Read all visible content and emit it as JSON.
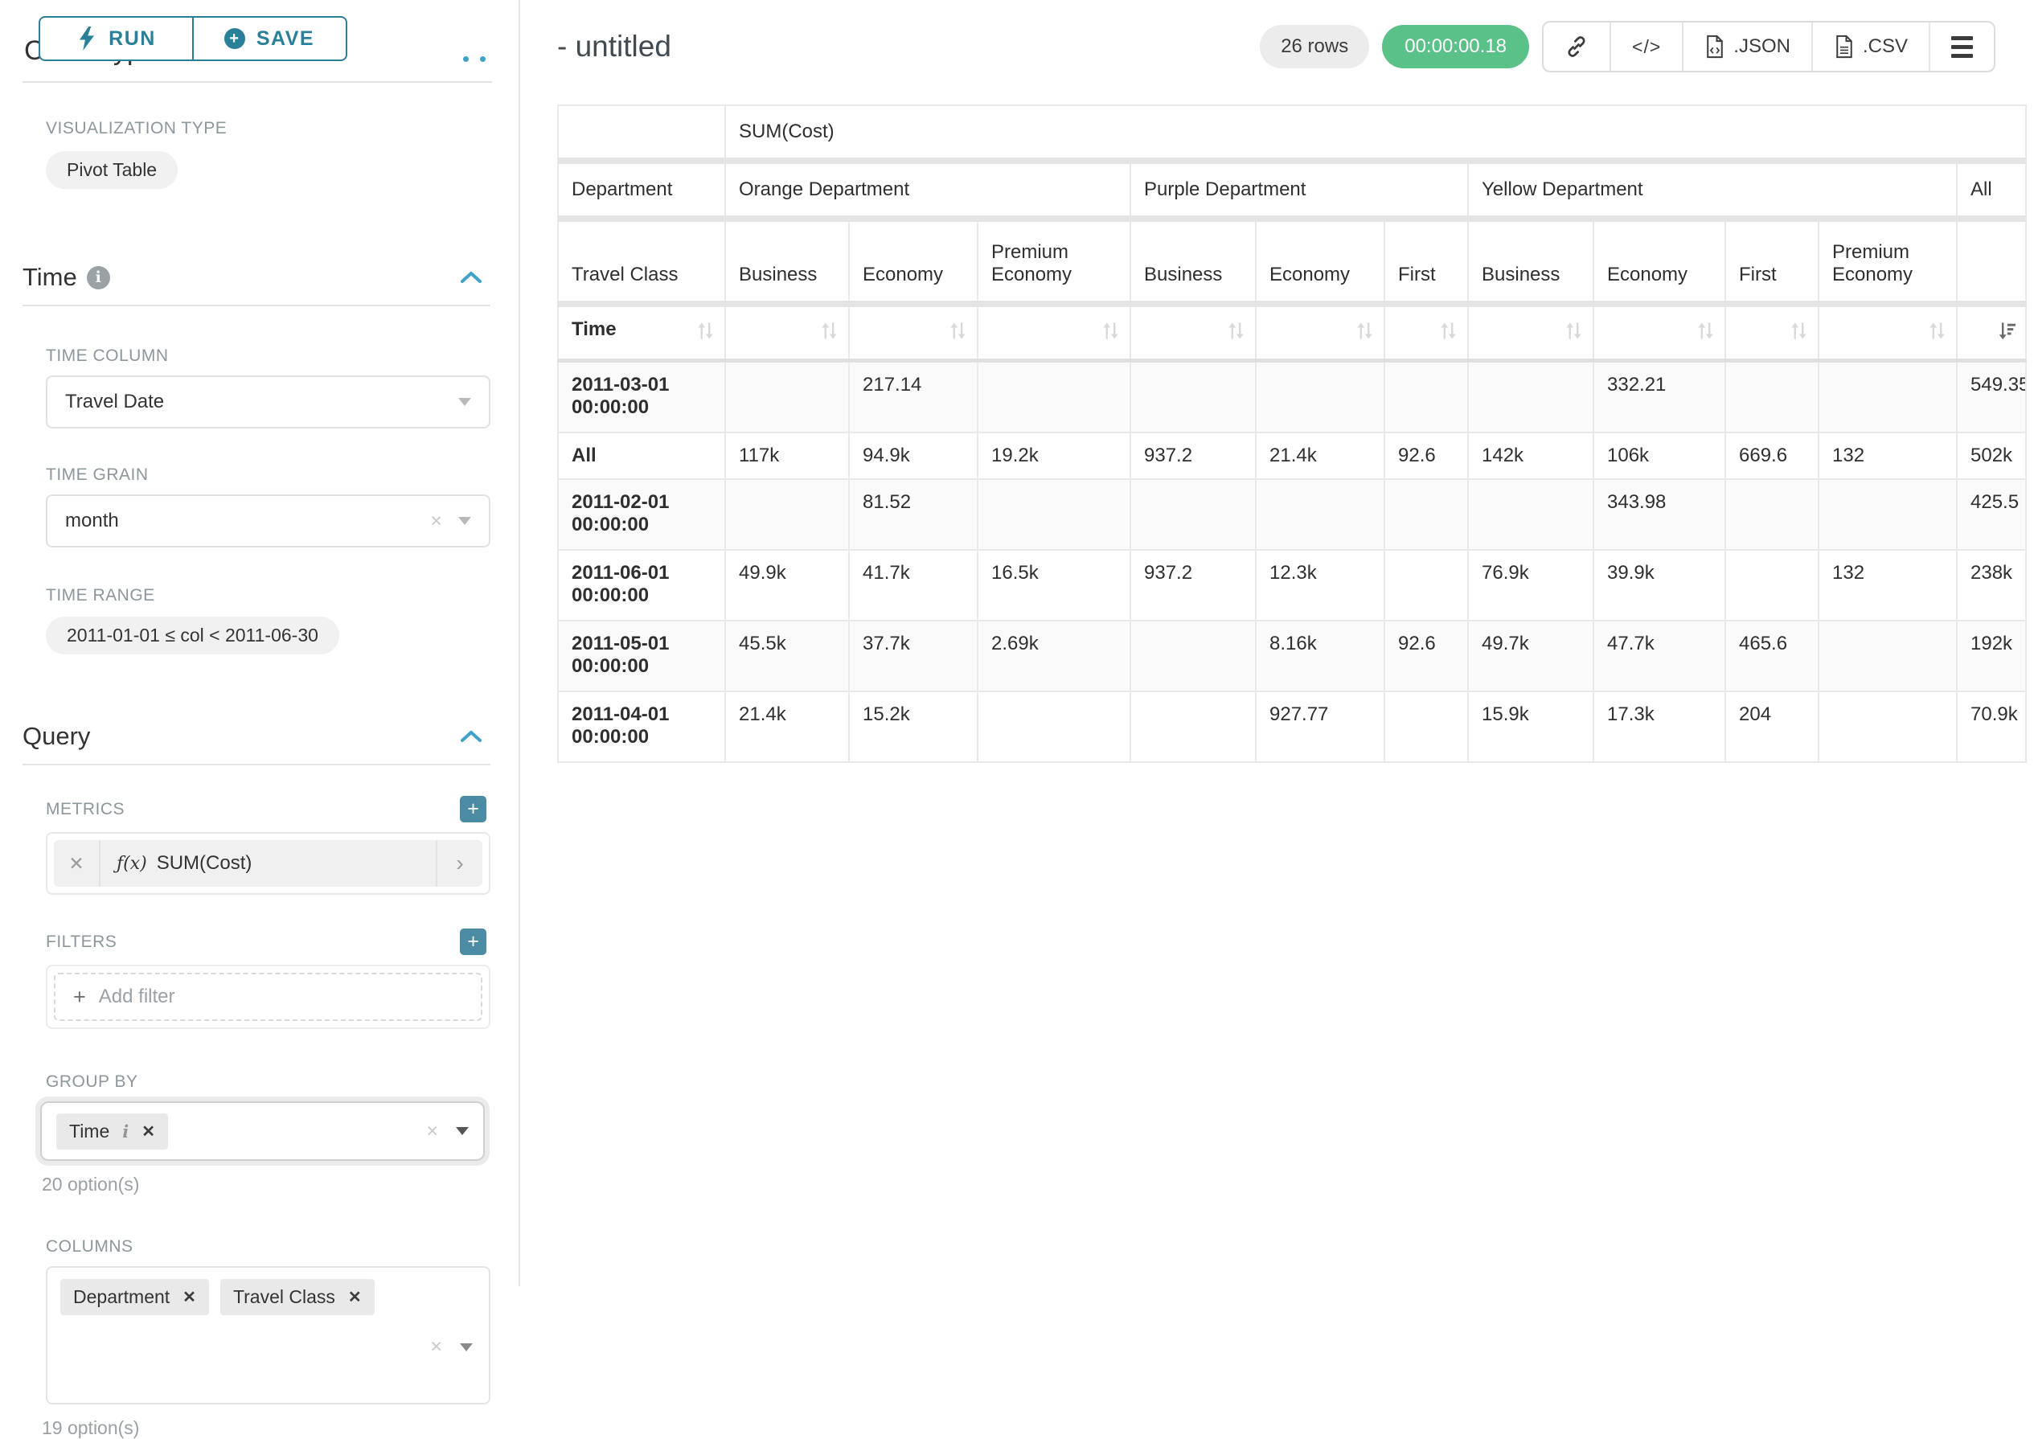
{
  "colors": {
    "accent": "#2a7f99",
    "primary_blue": "#3fa3c9",
    "success_green": "#5ac189",
    "label_grey": "#8c979c"
  },
  "icons": [
    "lightning-icon",
    "plus-circle-icon",
    "info-icon",
    "chevron-up-icon",
    "caret-down-icon",
    "clear-x-icon",
    "plus-icon",
    "fx-icon",
    "chevron-right-icon",
    "link-icon",
    "code-icon",
    "file-json-icon",
    "file-csv-icon",
    "hamburger-icon",
    "sort-icon",
    "sort-desc-icon",
    "drag-grip-icon"
  ],
  "left_panel": {
    "run_label": "RUN",
    "save_label": "SAVE",
    "chart_type_heading": "Chart Type",
    "viz_type_label": "VISUALIZATION TYPE",
    "viz_type_value": "Pivot Table",
    "time_section_title": "Time",
    "time_column_label": "TIME COLUMN",
    "time_column_value": "Travel Date",
    "time_grain_label": "TIME GRAIN",
    "time_grain_value": "month",
    "time_range_label": "TIME RANGE",
    "time_range_value": "2011-01-01 ≤ col < 2011-06-30",
    "query_section_title": "Query",
    "metrics_label": "METRICS",
    "metric_fx": "ƒ(x)",
    "metric_value": "SUM(Cost)",
    "filters_label": "FILTERS",
    "add_filter_label": "Add filter",
    "group_by_label": "GROUP BY",
    "group_by_tags": [
      {
        "label": "Time",
        "info": true
      }
    ],
    "group_by_options": "20 option(s)",
    "columns_label": "COLUMNS",
    "columns_tags": [
      {
        "label": "Department"
      },
      {
        "label": "Travel Class"
      }
    ],
    "columns_options": "19 option(s)"
  },
  "header": {
    "title": "- untitled",
    "rows_badge": "26 rows",
    "timer": "00:00:00.18",
    "export_json_label": ".JSON",
    "export_csv_label": ".CSV",
    "code_label": "</>"
  },
  "table": {
    "metric_label": "SUM(Cost)",
    "row_axis_label": "Department",
    "col_axis_label": "Travel Class",
    "sort_label": "Time",
    "groups": [
      {
        "label": "Orange Department",
        "span": 3
      },
      {
        "label": "Purple Department",
        "span": 3
      },
      {
        "label": "Yellow Department",
        "span": 4
      },
      {
        "label": "All",
        "span": 1
      }
    ],
    "classes": [
      "Business",
      "Economy",
      "Premium Economy",
      "Business",
      "Economy",
      "First",
      "Business",
      "Economy",
      "First",
      "Premium Economy",
      ""
    ],
    "rows": [
      {
        "time": "2011-03-01 00:00:00",
        "values": [
          "",
          "217.14",
          "",
          "",
          "",
          "",
          "",
          "332.21",
          "",
          "",
          "549.35"
        ]
      },
      {
        "time": "All",
        "values": [
          "117k",
          "94.9k",
          "19.2k",
          "937.2",
          "21.4k",
          "92.6",
          "142k",
          "106k",
          "669.6",
          "132",
          "502k"
        ]
      },
      {
        "time": "2011-02-01 00:00:00",
        "values": [
          "",
          "81.52",
          "",
          "",
          "",
          "",
          "",
          "343.98",
          "",
          "",
          "425.5"
        ]
      },
      {
        "time": "2011-06-01 00:00:00",
        "values": [
          "49.9k",
          "41.7k",
          "16.5k",
          "937.2",
          "12.3k",
          "",
          "76.9k",
          "39.9k",
          "",
          "132",
          "238k"
        ]
      },
      {
        "time": "2011-05-01 00:00:00",
        "values": [
          "45.5k",
          "37.7k",
          "2.69k",
          "",
          "8.16k",
          "92.6",
          "49.7k",
          "47.7k",
          "465.6",
          "",
          "192k"
        ]
      },
      {
        "time": "2011-04-01 00:00:00",
        "values": [
          "21.4k",
          "15.2k",
          "",
          "",
          "927.77",
          "",
          "15.9k",
          "17.3k",
          "204",
          "",
          "70.9k"
        ]
      }
    ]
  }
}
